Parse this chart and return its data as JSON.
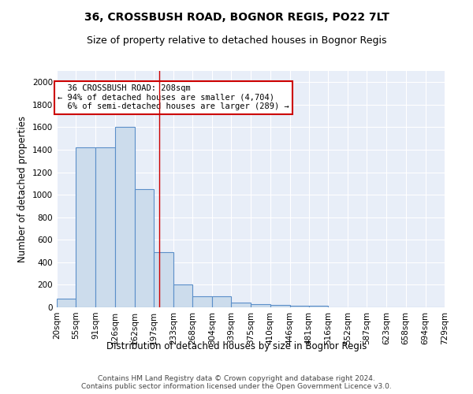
{
  "title1": "36, CROSSBUSH ROAD, BOGNOR REGIS, PO22 7LT",
  "title2": "Size of property relative to detached houses in Bognor Regis",
  "xlabel": "Distribution of detached houses by size in Bognor Regis",
  "ylabel": "Number of detached properties",
  "footnote": "Contains HM Land Registry data © Crown copyright and database right 2024.\nContains public sector information licensed under the Open Government Licence v3.0.",
  "bin_labels": [
    "20sqm",
    "55sqm",
    "91sqm",
    "126sqm",
    "162sqm",
    "197sqm",
    "233sqm",
    "268sqm",
    "304sqm",
    "339sqm",
    "375sqm",
    "410sqm",
    "446sqm",
    "481sqm",
    "516sqm",
    "552sqm",
    "587sqm",
    "623sqm",
    "658sqm",
    "694sqm",
    "729sqm"
  ],
  "bin_edges": [
    20,
    55,
    91,
    126,
    162,
    197,
    233,
    268,
    304,
    339,
    375,
    410,
    446,
    481,
    516,
    552,
    587,
    623,
    658,
    694,
    729
  ],
  "bar_heights": [
    80,
    1420,
    1420,
    1600,
    1050,
    490,
    200,
    100,
    100,
    40,
    25,
    20,
    15,
    15,
    0,
    0,
    0,
    0,
    0,
    0
  ],
  "bar_color": "#ccdcec",
  "bar_edge_color": "#5b8fc9",
  "background_color": "#e8eef8",
  "grid_color": "#ffffff",
  "red_line_x": 208,
  "ylim": [
    0,
    2100
  ],
  "yticks": [
    0,
    200,
    400,
    600,
    800,
    1000,
    1200,
    1400,
    1600,
    1800,
    2000
  ],
  "annotation_text": "  36 CROSSBUSH ROAD: 208sqm  \n← 94% of detached houses are smaller (4,704)\n  6% of semi-detached houses are larger (289) →",
  "annotation_box_color": "#ffffff",
  "annotation_box_edge_color": "#cc0000",
  "title1_fontsize": 10,
  "title2_fontsize": 9,
  "xlabel_fontsize": 8.5,
  "ylabel_fontsize": 8.5,
  "tick_fontsize": 7.5,
  "annotation_fontsize": 7.5,
  "footnote_fontsize": 6.5
}
